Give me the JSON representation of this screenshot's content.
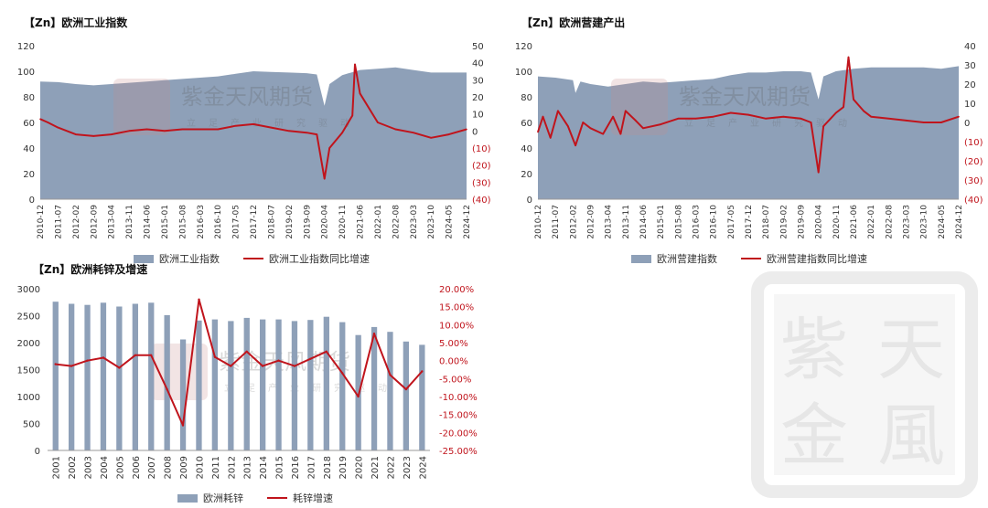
{
  "colors": {
    "area": "#8ea0b8",
    "line": "#c0141c",
    "axis": "#333333"
  },
  "watermark": {
    "brand": "紫金天风期货",
    "slogan": "立足产业研究驱动"
  },
  "chart_data": [
    {
      "type": "area+line",
      "title": "【Zn】欧洲工业指数",
      "legend": [
        "欧洲工业指数",
        "欧洲工业指数同比增速"
      ],
      "xticks": [
        "2010-12",
        "2011-07",
        "2012-02",
        "2012-09",
        "2013-04",
        "2013-11",
        "2014-06",
        "2015-01",
        "2015-08",
        "2016-03",
        "2016-10",
        "2017-05",
        "2017-12",
        "2018-07",
        "2019-02",
        "2019-09",
        "2020-04",
        "2020-11",
        "2021-06",
        "2022-01",
        "2022-08",
        "2023-03",
        "2023-10",
        "2024-05",
        "2024-12"
      ],
      "ylim": [
        0,
        120
      ],
      "yticks": [
        0,
        20,
        40,
        60,
        80,
        100,
        120
      ],
      "y2lim": [
        -40,
        50
      ],
      "y2ticks": [
        "50",
        "40",
        "30",
        "20",
        "10",
        "0",
        "(10)",
        "(20)",
        "(30)",
        "(40)"
      ],
      "series_area": {
        "name": "欧洲工业指数",
        "points": [
          [
            "2010-12",
            92
          ],
          [
            "2011-07",
            91.5
          ],
          [
            "2012-02",
            90
          ],
          [
            "2012-09",
            89
          ],
          [
            "2013-04",
            90
          ],
          [
            "2013-11",
            91
          ],
          [
            "2014-06",
            92
          ],
          [
            "2015-01",
            93
          ],
          [
            "2015-08",
            94
          ],
          [
            "2016-03",
            95
          ],
          [
            "2016-10",
            96
          ],
          [
            "2017-05",
            98
          ],
          [
            "2017-12",
            100
          ],
          [
            "2018-07",
            99.5
          ],
          [
            "2019-02",
            99
          ],
          [
            "2019-09",
            98.5
          ],
          [
            "2020-01",
            97.5
          ],
          [
            "2020-04",
            73
          ],
          [
            "2020-06",
            90
          ],
          [
            "2020-11",
            97
          ],
          [
            "2021-06",
            101
          ],
          [
            "2022-01",
            102
          ],
          [
            "2022-08",
            103
          ],
          [
            "2023-03",
            101
          ],
          [
            "2023-10",
            99
          ],
          [
            "2024-05",
            99
          ],
          [
            "2024-12",
            99
          ]
        ]
      },
      "series_line": {
        "name": "欧洲工业指数同比增速",
        "points": [
          [
            "2010-12",
            7
          ],
          [
            "2011-03",
            5
          ],
          [
            "2011-07",
            2
          ],
          [
            "2012-02",
            -2
          ],
          [
            "2012-09",
            -3
          ],
          [
            "2013-04",
            -2
          ],
          [
            "2013-11",
            0
          ],
          [
            "2014-06",
            1
          ],
          [
            "2015-01",
            0
          ],
          [
            "2015-08",
            1
          ],
          [
            "2016-03",
            1
          ],
          [
            "2016-10",
            1
          ],
          [
            "2017-05",
            3
          ],
          [
            "2017-12",
            4
          ],
          [
            "2018-07",
            2
          ],
          [
            "2019-02",
            0
          ],
          [
            "2019-09",
            -1
          ],
          [
            "2020-01",
            -2
          ],
          [
            "2020-04",
            -28
          ],
          [
            "2020-06",
            -10
          ],
          [
            "2020-11",
            -1
          ],
          [
            "2021-03",
            9
          ],
          [
            "2021-04",
            39
          ],
          [
            "2021-06",
            22
          ],
          [
            "2022-01",
            5
          ],
          [
            "2022-08",
            1
          ],
          [
            "2023-03",
            -1
          ],
          [
            "2023-10",
            -4
          ],
          [
            "2024-05",
            -2
          ],
          [
            "2024-12",
            1
          ]
        ]
      }
    },
    {
      "type": "area+line",
      "title": "【Zn】欧洲营建产出",
      "legend": [
        "欧洲营建指数",
        "欧洲营建指数同比增速"
      ],
      "xticks": [
        "2010-12",
        "2011-07",
        "2012-02",
        "2012-09",
        "2013-04",
        "2013-11",
        "2014-06",
        "2015-01",
        "2015-08",
        "2016-03",
        "2016-10",
        "2017-05",
        "2017-12",
        "2018-07",
        "2019-02",
        "2019-09",
        "2020-04",
        "2020-11",
        "2021-06",
        "2022-01",
        "2022-08",
        "2023-03",
        "2023-10",
        "2024-05",
        "2024-12"
      ],
      "ylim": [
        0,
        120
      ],
      "yticks": [
        0,
        20,
        40,
        60,
        80,
        100,
        120
      ],
      "y2lim": [
        -40,
        40
      ],
      "y2ticks": [
        "40",
        "30",
        "20",
        "10",
        "0",
        "(10)",
        "(20)",
        "(30)",
        "(40)"
      ],
      "series_area": {
        "name": "欧洲营建指数",
        "points": [
          [
            "2010-12",
            96
          ],
          [
            "2011-07",
            95
          ],
          [
            "2012-02",
            93
          ],
          [
            "2012-03",
            83
          ],
          [
            "2012-05",
            92
          ],
          [
            "2012-09",
            90
          ],
          [
            "2013-04",
            88
          ],
          [
            "2013-11",
            90
          ],
          [
            "2014-06",
            92
          ],
          [
            "2015-01",
            91
          ],
          [
            "2015-08",
            92
          ],
          [
            "2016-03",
            93
          ],
          [
            "2016-10",
            94
          ],
          [
            "2017-05",
            97
          ],
          [
            "2017-12",
            99
          ],
          [
            "2018-07",
            99
          ],
          [
            "2019-02",
            100
          ],
          [
            "2019-09",
            100
          ],
          [
            "2020-01",
            99
          ],
          [
            "2020-04",
            78
          ],
          [
            "2020-06",
            96
          ],
          [
            "2020-11",
            100
          ],
          [
            "2021-06",
            102
          ],
          [
            "2022-01",
            103
          ],
          [
            "2022-08",
            103
          ],
          [
            "2023-03",
            103
          ],
          [
            "2023-10",
            103
          ],
          [
            "2024-05",
            102
          ],
          [
            "2024-12",
            104
          ]
        ]
      },
      "series_line": {
        "name": "欧洲营建指数同比增速",
        "points": [
          [
            "2010-12",
            -5
          ],
          [
            "2011-02",
            3
          ],
          [
            "2011-05",
            -8
          ],
          [
            "2011-08",
            6
          ],
          [
            "2011-12",
            -2
          ],
          [
            "2012-03",
            -12
          ],
          [
            "2012-06",
            0
          ],
          [
            "2012-09",
            -3
          ],
          [
            "2013-02",
            -6
          ],
          [
            "2013-06",
            3
          ],
          [
            "2013-09",
            -6
          ],
          [
            "2013-11",
            6
          ],
          [
            "2014-03",
            1
          ],
          [
            "2014-06",
            -3
          ],
          [
            "2015-01",
            -1
          ],
          [
            "2015-08",
            2
          ],
          [
            "2016-03",
            2
          ],
          [
            "2016-10",
            3
          ],
          [
            "2017-05",
            5
          ],
          [
            "2017-12",
            4
          ],
          [
            "2018-07",
            2
          ],
          [
            "2019-02",
            3
          ],
          [
            "2019-09",
            2
          ],
          [
            "2020-01",
            0
          ],
          [
            "2020-04",
            -26
          ],
          [
            "2020-06",
            -2
          ],
          [
            "2020-11",
            5
          ],
          [
            "2021-02",
            8
          ],
          [
            "2021-04",
            34
          ],
          [
            "2021-06",
            12
          ],
          [
            "2021-10",
            6
          ],
          [
            "2022-01",
            3
          ],
          [
            "2022-08",
            2
          ],
          [
            "2023-03",
            1
          ],
          [
            "2023-10",
            0
          ],
          [
            "2024-05",
            0
          ],
          [
            "2024-12",
            3
          ]
        ]
      }
    },
    {
      "type": "bar+line",
      "title": "【Zn】欧洲耗锌及增速",
      "legend": [
        "欧洲耗锌",
        "耗锌增速"
      ],
      "categories": [
        "2001",
        "2002",
        "2003",
        "2004",
        "2005",
        "2006",
        "2007",
        "2008",
        "2009",
        "2010",
        "2011",
        "2012",
        "2013",
        "2014",
        "2015",
        "2016",
        "2017",
        "2018",
        "2019",
        "2020",
        "2021",
        "2022",
        "2023",
        "2024"
      ],
      "ylim": [
        0,
        3000
      ],
      "yticks": [
        0,
        500,
        1000,
        1500,
        2000,
        2500,
        3000
      ],
      "y2lim": [
        -25,
        20
      ],
      "y2ticks": [
        "20.00%",
        "15.00%",
        "10.00%",
        "5.00%",
        "0.00%",
        "-5.00%",
        "-10.00%",
        "-15.00%",
        "-20.00%",
        "-25.00%"
      ],
      "bars": {
        "name": "欧洲耗锌",
        "values": [
          2760,
          2720,
          2700,
          2740,
          2670,
          2720,
          2740,
          2510,
          2060,
          2410,
          2430,
          2400,
          2460,
          2430,
          2430,
          2400,
          2420,
          2480,
          2380,
          2140,
          2290,
          2200,
          2020,
          1960
        ]
      },
      "growth": {
        "name": "耗锌增速",
        "values": [
          -1.0,
          -1.5,
          0.0,
          0.8,
          -2.0,
          1.5,
          1.5,
          -8.0,
          -18.0,
          17.0,
          1.0,
          -1.5,
          2.5,
          -1.5,
          0.0,
          -1.5,
          0.5,
          2.5,
          -3.5,
          -10.0,
          7.5,
          -4.0,
          -8.0,
          -3.0
        ]
      }
    }
  ]
}
